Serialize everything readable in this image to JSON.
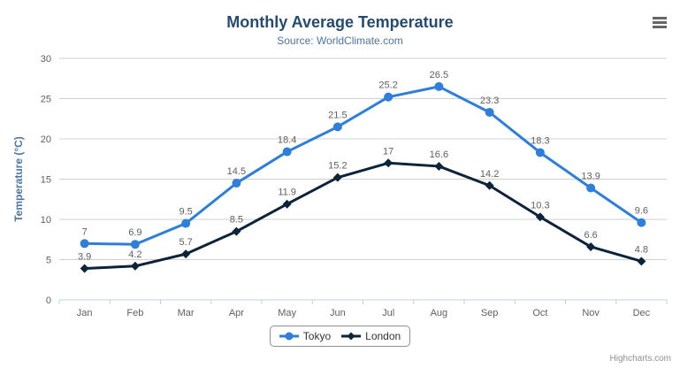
{
  "chart": {
    "title": "Monthly Average Temperature",
    "subtitle": "Source: WorldClimate.com",
    "credit": "Highcharts.com",
    "export_menu_icon": "hamburger-icon"
  },
  "colors": {
    "title": "#274b6d",
    "subtitle": "#4d759e",
    "axis_title": "#4d759e",
    "axis_labels": "#606060",
    "data_labels": "#606060",
    "gridline": "#d0d0d0",
    "axis_line": "#c0d0e0",
    "legend_border": "#909090",
    "legend_text": "#333333",
    "tokyo": "#2f7ed8",
    "london": "#0d233a"
  },
  "chart_data": {
    "type": "line",
    "title": "Monthly Average Temperature",
    "subtitle": "Source: WorldClimate.com",
    "categories": [
      "Jan",
      "Feb",
      "Mar",
      "Apr",
      "May",
      "Jun",
      "Jul",
      "Aug",
      "Sep",
      "Oct",
      "Nov",
      "Dec"
    ],
    "series": [
      {
        "name": "Tokyo",
        "color": "#2f7ed8",
        "marker": "circle",
        "values": [
          7,
          6.9,
          9.5,
          14.5,
          18.4,
          21.5,
          25.2,
          26.5,
          23.3,
          18.3,
          13.9,
          9.6
        ]
      },
      {
        "name": "London",
        "color": "#0d233a",
        "marker": "diamond",
        "values": [
          3.9,
          4.2,
          5.7,
          8.5,
          11.9,
          15.2,
          17,
          16.6,
          14.2,
          10.3,
          6.6,
          4.8
        ]
      }
    ],
    "xlabel": "",
    "ylabel": "Temperature (°C)",
    "ylim": [
      0,
      30
    ],
    "y_ticks": [
      0,
      5,
      10,
      15,
      20,
      25,
      30
    ],
    "grid": true,
    "data_labels": true,
    "legend_position": "bottom"
  }
}
